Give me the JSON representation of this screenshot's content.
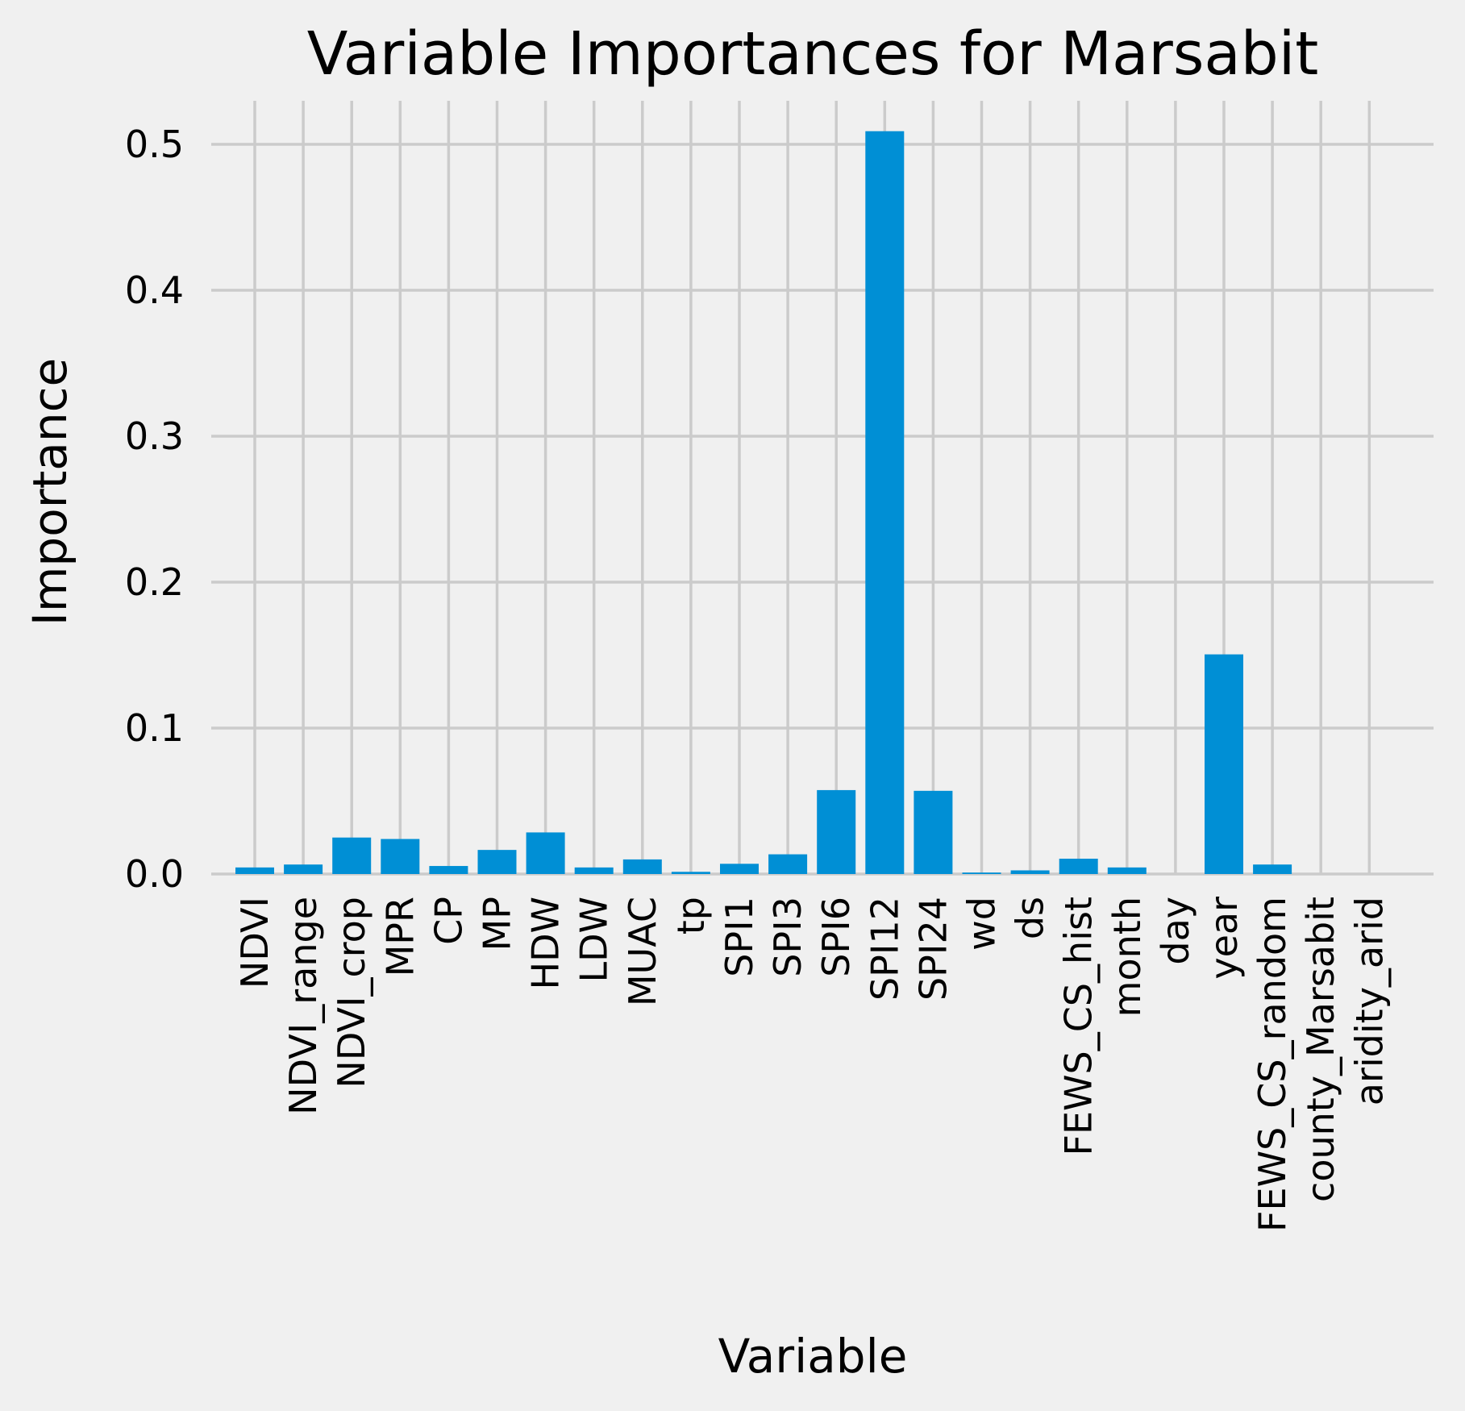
{
  "chart_data": {
    "type": "bar",
    "title": "Variable Importances for Marsabit",
    "xlabel": "Variable",
    "ylabel": "Importance",
    "ylim": [
      0,
      0.53
    ],
    "yticks": [
      0.0,
      0.1,
      0.2,
      0.3,
      0.4,
      0.5
    ],
    "ytick_labels": [
      "0.0",
      "0.1",
      "0.2",
      "0.3",
      "0.4",
      "0.5"
    ],
    "grid": true,
    "categories": [
      "NDVI",
      "NDVI_range",
      "NDVI_crop",
      "MPR",
      "CP",
      "MP",
      "HDW",
      "LDW",
      "MUAC",
      "tp",
      "SPI1",
      "SPI3",
      "SPI6",
      "SPI12",
      "SPI24",
      "wd",
      "ds",
      "FEWS_CS_hist",
      "month",
      "day",
      "year",
      "FEWS_CS_random",
      "county_Marsabit",
      "aridity_arid"
    ],
    "values": [
      0.0045,
      0.0065,
      0.025,
      0.024,
      0.0055,
      0.0165,
      0.0285,
      0.0045,
      0.01,
      0.0015,
      0.007,
      0.0135,
      0.0575,
      0.509,
      0.057,
      0.001,
      0.0025,
      0.0105,
      0.0045,
      0.0,
      0.1505,
      0.0065,
      0.0,
      0.0
    ],
    "bar_color": "#008fd5",
    "background_color": "#f0f0f0",
    "grid_color": "#cbcbcb"
  }
}
